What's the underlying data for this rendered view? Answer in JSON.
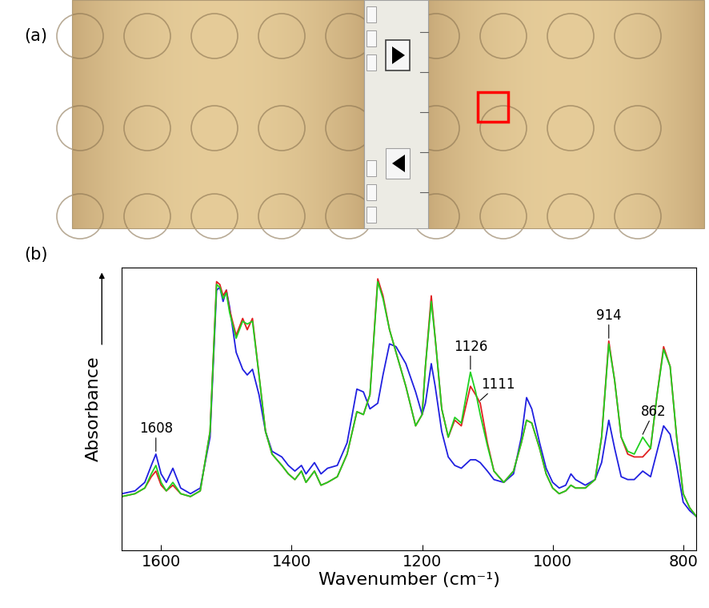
{
  "panel_labels": [
    "(a)",
    "(b)"
  ],
  "chart_data": {
    "type": "line",
    "xlabel": "Wavenumber (cm⁻¹)",
    "ylabel": "Absorbance",
    "xlim": [
      1660,
      780
    ],
    "xticks": [
      1600,
      1400,
      1200,
      1000,
      800
    ],
    "ylim": [
      0,
      1
    ],
    "tick_labels": "x",
    "grid": false,
    "x": [
      1660,
      1640,
      1625,
      1615,
      1608,
      1600,
      1592,
      1582,
      1570,
      1555,
      1540,
      1525,
      1515,
      1510,
      1505,
      1500,
      1495,
      1485,
      1475,
      1468,
      1460,
      1450,
      1440,
      1430,
      1415,
      1405,
      1395,
      1385,
      1378,
      1365,
      1355,
      1345,
      1330,
      1315,
      1300,
      1290,
      1280,
      1268,
      1260,
      1250,
      1240,
      1225,
      1210,
      1200,
      1195,
      1186,
      1180,
      1170,
      1160,
      1150,
      1140,
      1126,
      1118,
      1111,
      1100,
      1090,
      1075,
      1060,
      1048,
      1040,
      1032,
      1020,
      1010,
      1000,
      990,
      980,
      972,
      965,
      950,
      935,
      925,
      914,
      905,
      895,
      885,
      875,
      862,
      850,
      840,
      830,
      820,
      810,
      800,
      790,
      780
    ],
    "series": [
      {
        "color": "#2020e0",
        "values": [
          0.2,
          0.21,
          0.24,
          0.3,
          0.34,
          0.27,
          0.24,
          0.29,
          0.22,
          0.2,
          0.22,
          0.4,
          0.92,
          0.93,
          0.88,
          0.92,
          0.86,
          0.7,
          0.64,
          0.62,
          0.64,
          0.55,
          0.42,
          0.35,
          0.33,
          0.3,
          0.28,
          0.3,
          0.27,
          0.31,
          0.27,
          0.29,
          0.3,
          0.38,
          0.57,
          0.56,
          0.5,
          0.52,
          0.62,
          0.73,
          0.72,
          0.66,
          0.56,
          0.48,
          0.52,
          0.66,
          0.58,
          0.42,
          0.33,
          0.3,
          0.29,
          0.32,
          0.32,
          0.31,
          0.28,
          0.25,
          0.24,
          0.27,
          0.4,
          0.54,
          0.5,
          0.38,
          0.29,
          0.24,
          0.22,
          0.23,
          0.27,
          0.25,
          0.23,
          0.25,
          0.31,
          0.46,
          0.36,
          0.26,
          0.25,
          0.25,
          0.28,
          0.26,
          0.35,
          0.44,
          0.41,
          0.3,
          0.17,
          0.14,
          0.12
        ]
      },
      {
        "color": "#e02020",
        "values": [
          0.19,
          0.2,
          0.22,
          0.26,
          0.28,
          0.23,
          0.21,
          0.23,
          0.2,
          0.19,
          0.21,
          0.42,
          0.95,
          0.94,
          0.9,
          0.92,
          0.85,
          0.76,
          0.82,
          0.78,
          0.82,
          0.62,
          0.42,
          0.34,
          0.3,
          0.27,
          0.25,
          0.28,
          0.24,
          0.28,
          0.23,
          0.24,
          0.26,
          0.34,
          0.49,
          0.48,
          0.55,
          0.96,
          0.9,
          0.78,
          0.7,
          0.58,
          0.44,
          0.48,
          0.65,
          0.9,
          0.75,
          0.5,
          0.4,
          0.46,
          0.44,
          0.58,
          0.55,
          0.52,
          0.38,
          0.28,
          0.24,
          0.28,
          0.38,
          0.46,
          0.45,
          0.36,
          0.27,
          0.22,
          0.2,
          0.21,
          0.23,
          0.22,
          0.22,
          0.25,
          0.4,
          0.74,
          0.6,
          0.4,
          0.34,
          0.33,
          0.33,
          0.36,
          0.55,
          0.72,
          0.65,
          0.4,
          0.2,
          0.15,
          0.12
        ]
      },
      {
        "color": "#20d020",
        "values": [
          0.19,
          0.2,
          0.22,
          0.27,
          0.3,
          0.24,
          0.21,
          0.24,
          0.2,
          0.19,
          0.21,
          0.42,
          0.94,
          0.93,
          0.89,
          0.91,
          0.84,
          0.75,
          0.81,
          0.8,
          0.81,
          0.62,
          0.42,
          0.34,
          0.3,
          0.27,
          0.25,
          0.28,
          0.24,
          0.28,
          0.23,
          0.24,
          0.26,
          0.34,
          0.49,
          0.48,
          0.55,
          0.95,
          0.89,
          0.78,
          0.7,
          0.58,
          0.44,
          0.48,
          0.65,
          0.88,
          0.75,
          0.5,
          0.4,
          0.47,
          0.45,
          0.63,
          0.56,
          0.48,
          0.37,
          0.28,
          0.24,
          0.28,
          0.38,
          0.46,
          0.45,
          0.36,
          0.27,
          0.22,
          0.2,
          0.21,
          0.23,
          0.22,
          0.22,
          0.25,
          0.4,
          0.73,
          0.6,
          0.4,
          0.35,
          0.34,
          0.4,
          0.36,
          0.55,
          0.71,
          0.65,
          0.4,
          0.2,
          0.15,
          0.12
        ]
      }
    ],
    "annotations": [
      {
        "text": "1608",
        "x": 1608
      },
      {
        "text": "1126",
        "x": 1126
      },
      {
        "text": "1111",
        "x": 1111
      },
      {
        "text": "914",
        "x": 914
      },
      {
        "text": "862",
        "x": 862
      }
    ]
  }
}
